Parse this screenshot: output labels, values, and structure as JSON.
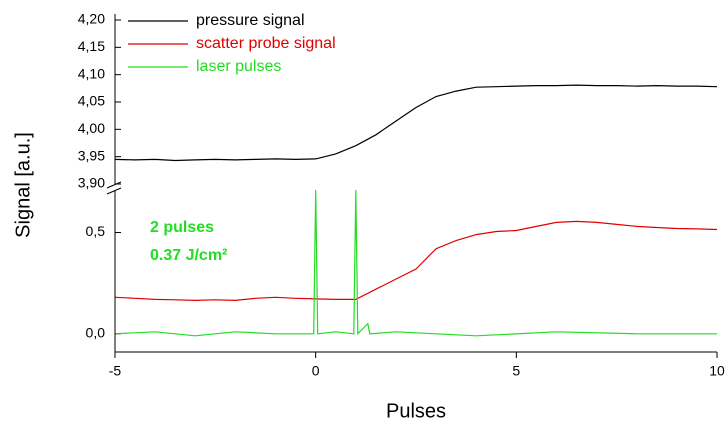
{
  "chart_data": [
    {
      "type": "line",
      "ylabel": "Signal [a.u.]",
      "xlim": [
        -5,
        10
      ],
      "ylim": [
        3.9,
        4.2
      ],
      "yticks": [
        {
          "value": 3.9,
          "label": "3,90"
        },
        {
          "value": 3.95,
          "label": "3,95"
        },
        {
          "value": 4.0,
          "label": "4,00"
        },
        {
          "value": 4.05,
          "label": "4,05"
        },
        {
          "value": 4.1,
          "label": "4,10"
        },
        {
          "value": 4.15,
          "label": "4,15"
        },
        {
          "value": 4.2,
          "label": "4,20"
        }
      ],
      "series": [
        {
          "name": "pressure signal",
          "color": "#000000",
          "x": [
            -5,
            -4.5,
            -4,
            -3.5,
            -3,
            -2.5,
            -2,
            -1.5,
            -1,
            -0.5,
            0,
            0.5,
            1,
            1.5,
            2,
            2.5,
            3,
            3.5,
            4,
            4.5,
            5,
            5.5,
            6,
            6.5,
            7,
            7.5,
            8,
            8.5,
            9,
            9.5,
            10
          ],
          "values": [
            3.945,
            3.944,
            3.945,
            3.943,
            3.944,
            3.945,
            3.944,
            3.945,
            3.946,
            3.945,
            3.946,
            3.955,
            3.97,
            3.99,
            4.015,
            4.04,
            4.06,
            4.07,
            4.077,
            4.078,
            4.079,
            4.08,
            4.08,
            4.081,
            4.08,
            4.08,
            4.079,
            4.08,
            4.079,
            4.079,
            4.078
          ]
        }
      ]
    },
    {
      "type": "line",
      "xlabel": "Pulses",
      "xlim": [
        -5,
        10
      ],
      "xticks": [
        -5,
        0,
        5,
        10
      ],
      "ylim": [
        -0.09,
        0.71
      ],
      "yticks": [
        {
          "value": 0.0,
          "label": "0,0"
        },
        {
          "value": 0.5,
          "label": "0,5"
        }
      ],
      "annotations": [
        "2 pulses",
        "0.37 J/cm²"
      ],
      "series": [
        {
          "name": "scatter probe signal",
          "color": "#e00000",
          "x": [
            -5,
            -4.5,
            -4,
            -3.5,
            -3,
            -2.5,
            -2,
            -1.5,
            -1,
            -0.5,
            0,
            0.5,
            1,
            1.5,
            2,
            2.5,
            3,
            3.5,
            4,
            4.5,
            5,
            5.5,
            6,
            6.5,
            7,
            7.5,
            8,
            8.5,
            9,
            9.5,
            10
          ],
          "values": [
            0.18,
            0.175,
            0.17,
            0.168,
            0.165,
            0.168,
            0.165,
            0.175,
            0.18,
            0.175,
            0.172,
            0.17,
            0.17,
            0.22,
            0.27,
            0.32,
            0.42,
            0.46,
            0.49,
            0.505,
            0.51,
            0.53,
            0.55,
            0.555,
            0.55,
            0.54,
            0.53,
            0.525,
            0.52,
            0.518,
            0.515
          ]
        },
        {
          "name": "laser pulses",
          "color": "#22dd22",
          "x": [
            -5,
            -4,
            -3,
            -2,
            -1,
            -0.05,
            0,
            0.05,
            0.5,
            0.95,
            1,
            1.05,
            1.3,
            1.35,
            2,
            4,
            6,
            8,
            10
          ],
          "values": [
            0,
            0.01,
            -0.01,
            0.01,
            0,
            0,
            0.71,
            0,
            0.01,
            0,
            0.71,
            0,
            0.05,
            0,
            0.01,
            -0.01,
            0.01,
            0,
            0
          ]
        }
      ]
    }
  ]
}
